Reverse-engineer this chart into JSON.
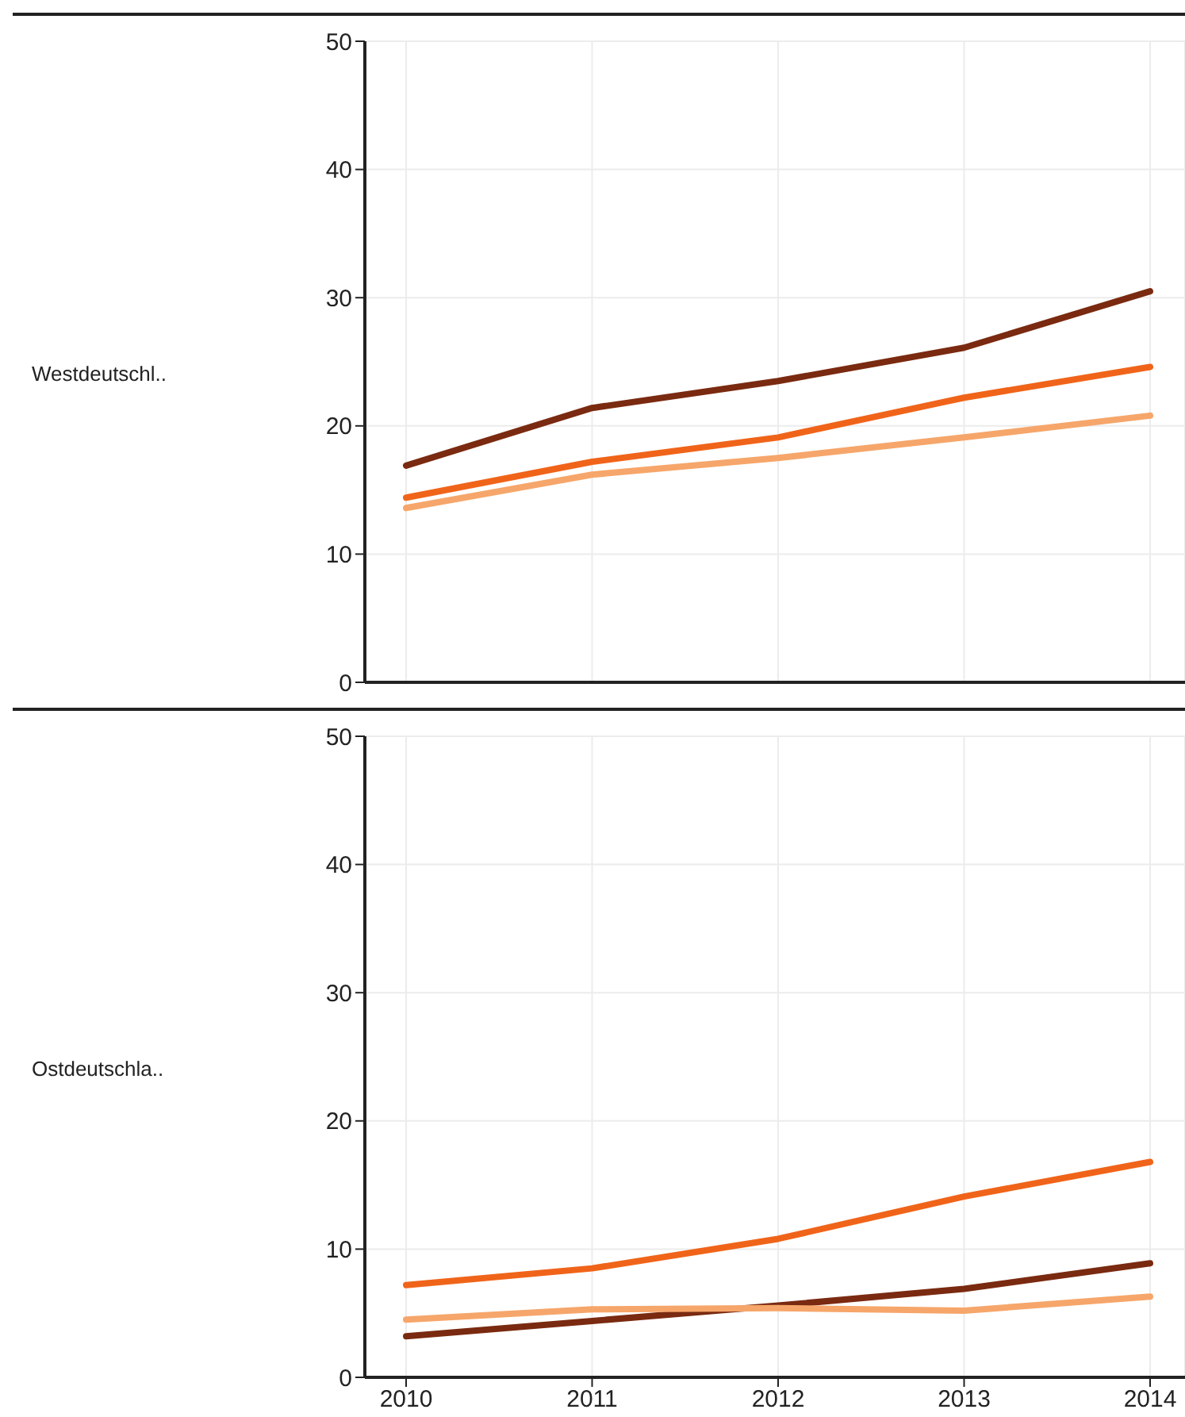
{
  "chart_data": [
    {
      "type": "line",
      "ylabel": "Westdeutschl..",
      "categories": [
        "2010",
        "2011",
        "2012",
        "2013",
        "2014"
      ],
      "ylim": [
        0,
        50
      ],
      "yticks": [
        0,
        10,
        20,
        30,
        40,
        50
      ],
      "grid": true,
      "legend": false,
      "tick_labels": "y",
      "series": [
        {
          "color": "#7a2a10",
          "values": [
            16.9,
            21.4,
            23.5,
            26.1,
            30.5
          ]
        },
        {
          "color": "#f0641a",
          "values": [
            14.4,
            17.2,
            19.1,
            22.2,
            24.6
          ]
        },
        {
          "color": "#f6a66a",
          "values": [
            13.6,
            16.2,
            17.5,
            19.1,
            20.8
          ]
        }
      ]
    },
    {
      "type": "line",
      "ylabel": "Ostdeutschla..",
      "categories": [
        "2010",
        "2011",
        "2012",
        "2013",
        "2014"
      ],
      "ylim": [
        0,
        50
      ],
      "yticks": [
        0,
        10,
        20,
        30,
        40,
        50
      ],
      "grid": true,
      "legend": false,
      "series": [
        {
          "color": "#f0641a",
          "values": [
            7.2,
            8.5,
            10.8,
            14.1,
            16.8
          ]
        },
        {
          "color": "#7a2a10",
          "values": [
            3.2,
            4.4,
            5.6,
            6.9,
            8.9
          ]
        },
        {
          "color": "#f6a66a",
          "values": [
            4.5,
            5.3,
            5.4,
            5.2,
            6.3
          ]
        }
      ]
    }
  ]
}
